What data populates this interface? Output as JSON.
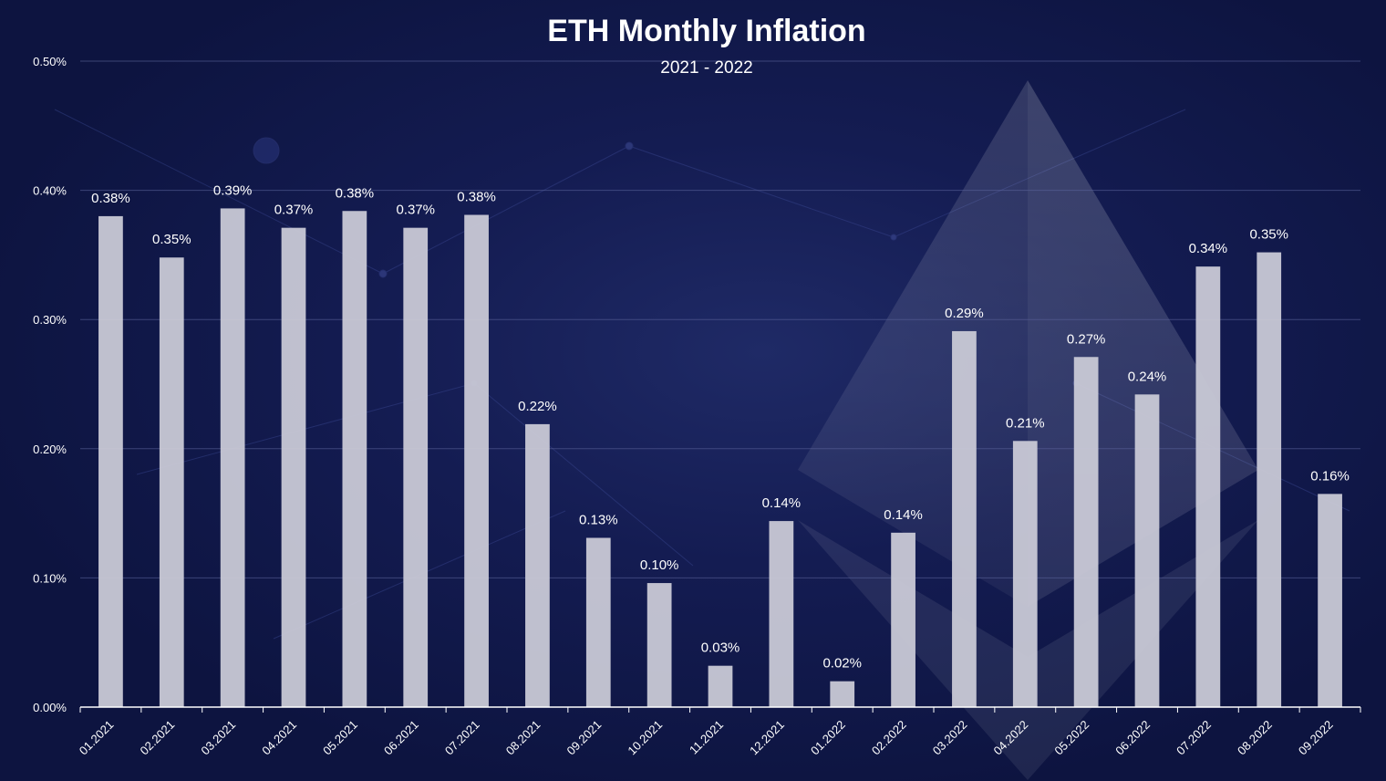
{
  "chart_data": {
    "type": "bar",
    "title": "ETH Monthly Inflation",
    "subtitle": "2021 - 2022",
    "xlabel": "",
    "ylabel": "",
    "ylim": [
      0,
      0.5
    ],
    "yticks": [
      "0.00%",
      "0.10%",
      "0.20%",
      "0.30%",
      "0.40%",
      "0.50%"
    ],
    "grid": true,
    "legend": "none",
    "bar_color": "#c9c9d6",
    "background_color": "#0d1440",
    "categories": [
      "01.2021",
      "02.2021",
      "03.2021",
      "04.2021",
      "05.2021",
      "06.2021",
      "07.2021",
      "08.2021",
      "09.2021",
      "10.2021",
      "11.2021",
      "12.2021",
      "01.2022",
      "02.2022",
      "03.2022",
      "04.2022",
      "05.2022",
      "06.2022",
      "07.2022",
      "08.2022",
      "09.2022"
    ],
    "values": [
      0.38,
      0.348,
      0.386,
      0.371,
      0.384,
      0.371,
      0.381,
      0.219,
      0.131,
      0.096,
      0.032,
      0.144,
      0.02,
      0.135,
      0.291,
      0.206,
      0.271,
      0.242,
      0.341,
      0.352,
      0.165
    ],
    "data_labels": [
      "0.38%",
      "0.35%",
      "0.39%",
      "0.37%",
      "0.38%",
      "0.37%",
      "0.38%",
      "0.22%",
      "0.13%",
      "0.10%",
      "0.03%",
      "0.14%",
      "0.02%",
      "0.14%",
      "0.29%",
      "0.21%",
      "0.27%",
      "0.24%",
      "0.34%",
      "0.35%",
      "0.16%"
    ]
  }
}
